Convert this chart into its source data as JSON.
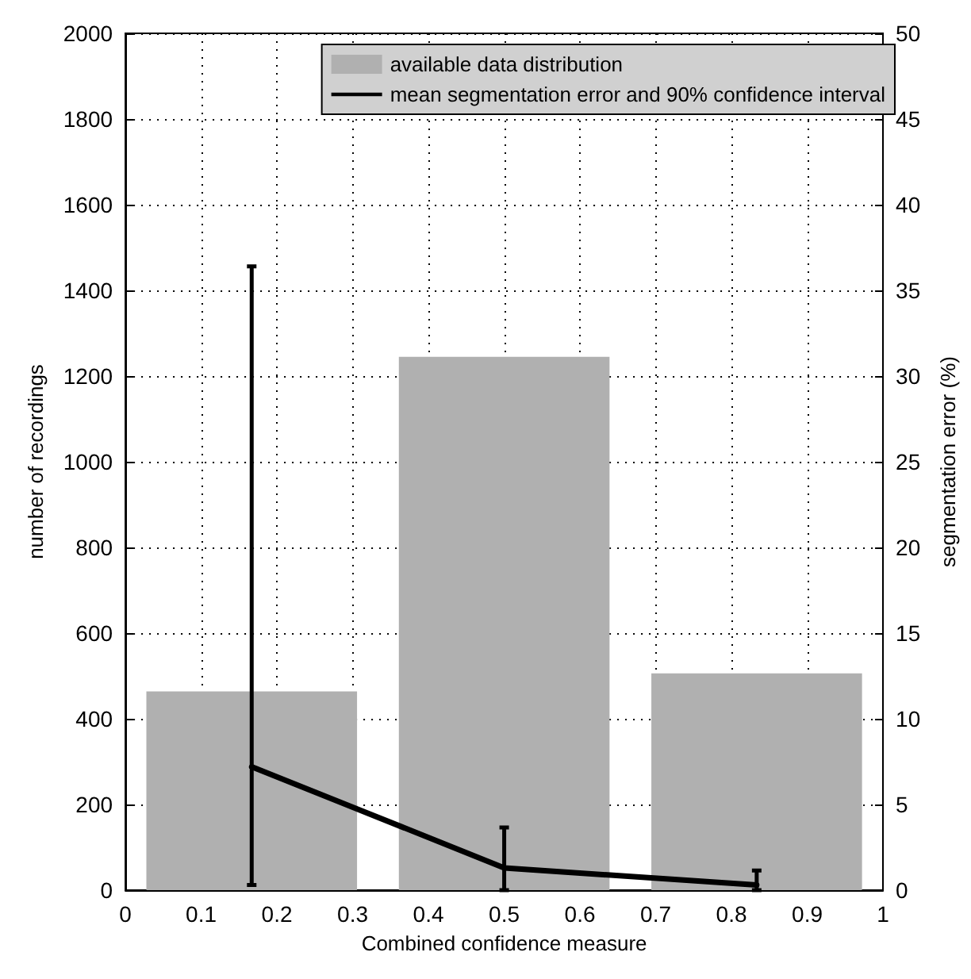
{
  "chart_data": {
    "type": "bar",
    "xlabel": "Combined confidence measure",
    "ylabel": "number of recordings",
    "y2label": "segmentation error (%)",
    "x": [
      0.1667,
      0.5,
      0.8333
    ],
    "series": [
      {
        "name": "available data distribution",
        "color": "#b0b0b0",
        "values": [
          464,
          1245,
          506
        ]
      },
      {
        "name": "mean segmentation error and 90% confidence interval",
        "type": "line",
        "axis": "y2",
        "color": "#000000",
        "values": [
          7.2,
          1.3,
          0.3
        ],
        "errors": [
          [
            0.3,
            36.4
          ],
          [
            0,
            3.66
          ],
          [
            0,
            1.15
          ]
        ]
      }
    ],
    "xlim": [
      0,
      1
    ],
    "xticks": [
      0,
      0.1,
      0.2,
      0.3,
      0.4,
      0.5,
      0.6,
      0.7,
      0.8,
      0.9,
      1
    ],
    "ylim": [
      0,
      2000
    ],
    "yticks": [
      0,
      200,
      400,
      600,
      800,
      1000,
      1200,
      1400,
      1600,
      1800,
      2000
    ],
    "y2lim": [
      0,
      50
    ],
    "y2ticks": [
      0,
      5,
      10,
      15,
      20,
      25,
      30,
      35,
      40,
      45,
      50
    ],
    "grid": true,
    "legend": "top right",
    "marker": "none",
    "line_style": "solid"
  }
}
